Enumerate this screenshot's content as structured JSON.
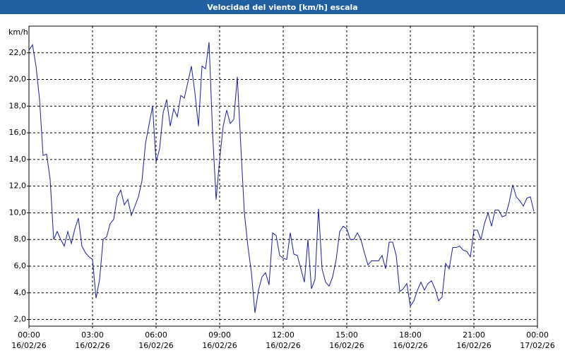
{
  "chart_data": {
    "type": "line",
    "title": "Velocidad del viento [km/h] escala",
    "y_label": "km/h",
    "x": [
      0,
      10,
      20,
      30,
      40,
      50,
      60,
      70,
      80,
      90,
      100,
      110,
      120,
      130,
      140,
      150,
      160,
      170,
      180,
      190,
      200,
      210,
      220,
      230,
      240,
      250,
      260,
      270,
      280,
      290,
      300,
      310,
      320,
      330,
      340,
      350,
      360,
      370,
      380,
      390,
      400,
      410,
      420,
      430,
      440,
      450,
      460,
      470,
      480,
      490,
      500,
      510,
      520,
      530,
      540,
      550,
      560,
      570,
      580,
      590,
      600,
      610,
      620,
      630,
      640,
      650,
      660,
      670,
      680,
      690,
      700,
      710,
      720,
      730,
      740,
      750,
      760,
      770,
      780,
      790,
      800,
      810,
      820,
      830,
      840,
      850,
      860,
      870,
      880,
      890,
      900,
      910,
      920,
      930,
      940,
      950,
      960,
      970,
      980,
      990,
      1000,
      1010,
      1020,
      1030,
      1040,
      1050,
      1060,
      1070,
      1080,
      1090,
      1100,
      1110,
      1120,
      1130,
      1140,
      1150,
      1160,
      1170,
      1180,
      1190,
      1200,
      1210,
      1220,
      1230,
      1240,
      1250,
      1260,
      1270,
      1280,
      1290,
      1300,
      1310,
      1320,
      1330,
      1340,
      1350,
      1360,
      1370,
      1380,
      1390,
      1400,
      1410,
      1420,
      1430
    ],
    "series": [
      {
        "color": "#1a1aa6",
        "values": [
          22.2,
          22.6,
          21.0,
          18.5,
          14.3,
          14.4,
          12.5,
          8.0,
          8.6,
          8.0,
          7.5,
          8.6,
          7.7,
          8.8,
          9.6,
          7.5,
          7.0,
          6.7,
          6.5,
          3.6,
          5.0,
          8.0,
          8.2,
          9.2,
          9.5,
          11.2,
          11.7,
          10.6,
          11.0,
          9.8,
          10.5,
          11.2,
          12.4,
          15.2,
          16.6,
          18.0,
          13.8,
          14.8,
          17.5,
          18.5,
          16.5,
          17.8,
          17.2,
          18.8,
          18.6,
          19.8,
          21.0,
          19.0,
          16.5,
          21.0,
          20.8,
          22.8,
          16.0,
          11.0,
          14.0,
          16.5,
          17.7,
          16.7,
          17.0,
          20.2,
          15.0,
          10.0,
          7.5,
          5.5,
          2.5,
          4.2,
          5.2,
          5.5,
          4.6,
          8.5,
          8.3,
          6.8,
          6.6,
          6.5,
          8.5,
          6.9,
          6.8,
          5.8,
          4.8,
          8.0,
          4.3,
          5.0,
          10.3,
          5.8,
          4.8,
          4.5,
          5.2,
          6.5,
          8.6,
          9.0,
          8.8,
          8.0,
          8.0,
          8.5,
          8.0,
          7.0,
          6.1,
          6.4,
          6.4,
          6.4,
          6.8,
          5.8,
          7.8,
          7.8,
          6.8,
          4.1,
          4.3,
          4.7,
          3.0,
          3.4,
          4.2,
          4.8,
          4.2,
          4.7,
          4.9,
          4.3,
          3.4,
          3.7,
          6.2,
          5.8,
          7.4,
          7.4,
          7.5,
          7.2,
          7.1,
          6.7,
          8.7,
          8.7,
          8.0,
          9.2,
          10.0,
          9.0,
          10.2,
          10.2,
          9.7,
          9.8,
          10.8,
          12.1,
          11.2,
          10.9,
          10.5,
          11.1,
          11.2,
          10.1
        ]
      }
    ],
    "xlim": [
      0,
      1440
    ],
    "xticks": [
      {
        "value": 0,
        "label": "00:00",
        "date": "16/02/26"
      },
      {
        "value": 180,
        "label": "03:00",
        "date": "16/02/26"
      },
      {
        "value": 360,
        "label": "06:00",
        "date": "16/02/26"
      },
      {
        "value": 540,
        "label": "09:00",
        "date": "16/02/26"
      },
      {
        "value": 720,
        "label": "12:00",
        "date": "16/02/26"
      },
      {
        "value": 900,
        "label": "15:00",
        "date": "16/02/26"
      },
      {
        "value": 1080,
        "label": "18:00",
        "date": "16/02/26"
      },
      {
        "value": 1260,
        "label": "21:00",
        "date": "16/02/26"
      },
      {
        "value": 1440,
        "label": "00:00",
        "date": "17/02/26"
      }
    ],
    "ylim": [
      1.5,
      24
    ],
    "yticks": [
      {
        "value": 2,
        "label": "2,0"
      },
      {
        "value": 4,
        "label": "4,0"
      },
      {
        "value": 6,
        "label": "6,0"
      },
      {
        "value": 8,
        "label": "8,0"
      },
      {
        "value": 10,
        "label": "10,0"
      },
      {
        "value": 12,
        "label": "12,0"
      },
      {
        "value": 14,
        "label": "14,0"
      },
      {
        "value": 16,
        "label": "16,0"
      },
      {
        "value": 18,
        "label": "18,0"
      },
      {
        "value": 20,
        "label": "20,0"
      },
      {
        "value": 22,
        "label": "22,0"
      }
    ],
    "grid": true
  }
}
